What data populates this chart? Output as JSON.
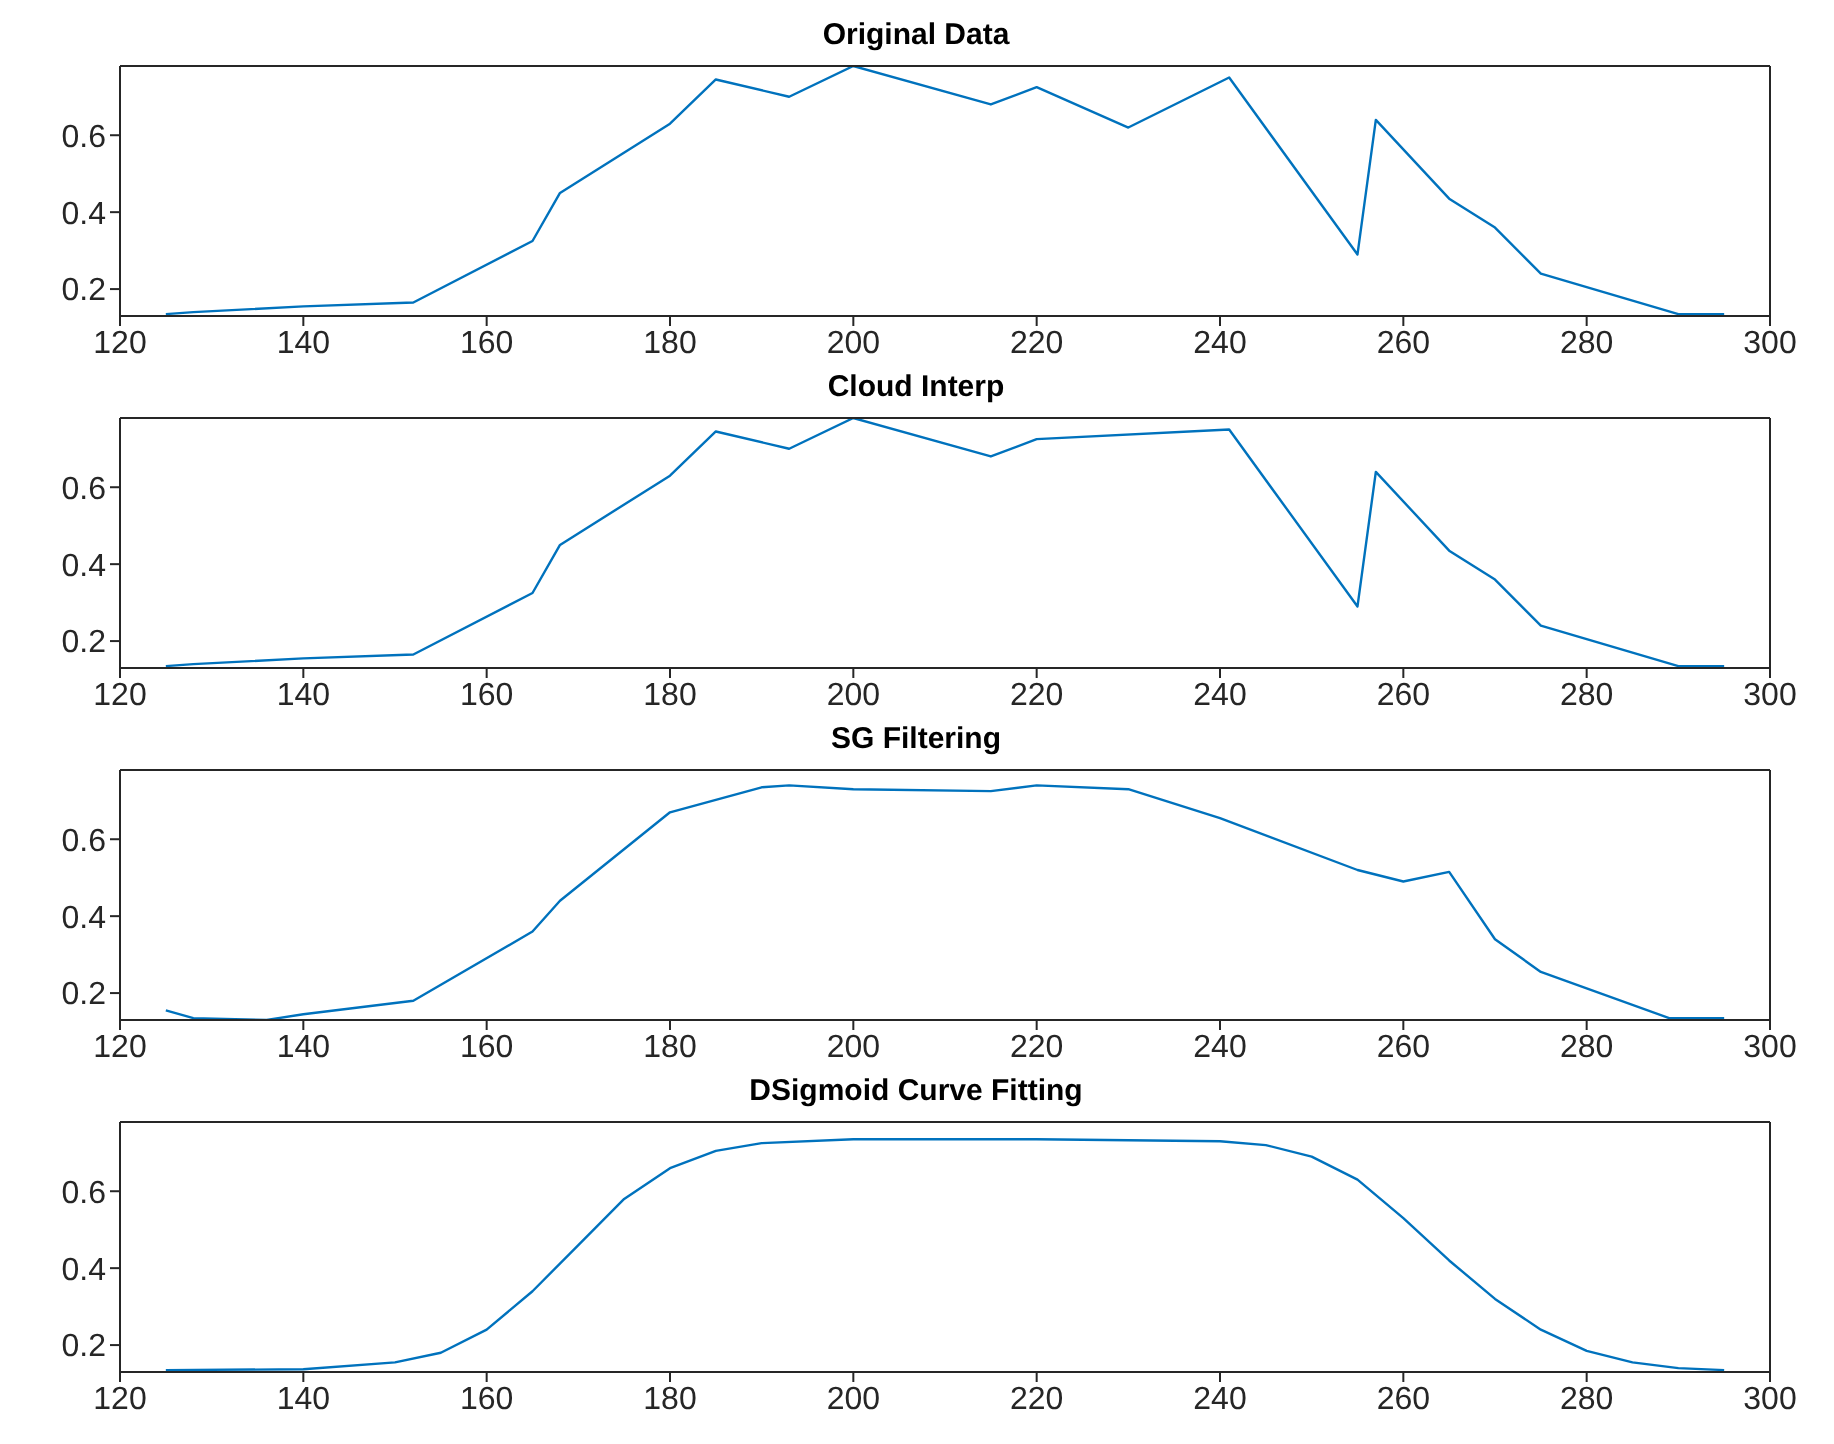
{
  "chart_data": [
    {
      "type": "line",
      "title": "Original Data",
      "color": "#0072bd",
      "xlim": [
        120,
        300
      ],
      "xticks": [
        120,
        140,
        160,
        180,
        200,
        220,
        240,
        260,
        280,
        300
      ],
      "ylim": [
        0.13,
        0.78
      ],
      "yticks": [
        0.2,
        0.4,
        0.6
      ],
      "x": [
        125,
        128,
        140,
        152,
        165,
        168,
        180,
        185,
        193,
        200,
        215,
        220,
        230,
        241,
        255,
        257,
        265,
        270,
        275,
        290,
        295
      ],
      "values": [
        0.135,
        0.14,
        0.155,
        0.165,
        0.325,
        0.45,
        0.63,
        0.745,
        0.7,
        0.78,
        0.68,
        0.725,
        0.62,
        0.75,
        0.29,
        0.64,
        0.435,
        0.36,
        0.24,
        0.135,
        0.135
      ]
    },
    {
      "type": "line",
      "title": "Cloud Interp",
      "color": "#0072bd",
      "xlim": [
        120,
        300
      ],
      "xticks": [
        120,
        140,
        160,
        180,
        200,
        220,
        240,
        260,
        280,
        300
      ],
      "ylim": [
        0.13,
        0.78
      ],
      "yticks": [
        0.2,
        0.4,
        0.6
      ],
      "x": [
        125,
        128,
        140,
        152,
        165,
        168,
        180,
        185,
        193,
        200,
        215,
        220,
        241,
        255,
        257,
        265,
        270,
        275,
        290,
        295
      ],
      "values": [
        0.135,
        0.14,
        0.155,
        0.165,
        0.325,
        0.45,
        0.63,
        0.745,
        0.7,
        0.78,
        0.68,
        0.725,
        0.75,
        0.29,
        0.64,
        0.435,
        0.36,
        0.24,
        0.135,
        0.135
      ]
    },
    {
      "type": "line",
      "title": "SG Filtering",
      "color": "#0072bd",
      "xlim": [
        120,
        300
      ],
      "xticks": [
        120,
        140,
        160,
        180,
        200,
        220,
        240,
        260,
        280,
        300
      ],
      "ylim": [
        0.13,
        0.78
      ],
      "yticks": [
        0.2,
        0.4,
        0.6
      ],
      "x": [
        125,
        128,
        136,
        140,
        152,
        165,
        168,
        180,
        190,
        193,
        200,
        215,
        220,
        230,
        240,
        255,
        260,
        265,
        270,
        275,
        289,
        295
      ],
      "values": [
        0.155,
        0.135,
        0.13,
        0.145,
        0.18,
        0.36,
        0.44,
        0.67,
        0.735,
        0.74,
        0.73,
        0.725,
        0.74,
        0.73,
        0.655,
        0.52,
        0.49,
        0.515,
        0.34,
        0.255,
        0.135,
        0.135
      ]
    },
    {
      "type": "line",
      "title": "DSigmoid Curve Fitting",
      "color": "#0072bd",
      "xlim": [
        120,
        300
      ],
      "xticks": [
        120,
        140,
        160,
        180,
        200,
        220,
        240,
        260,
        280,
        300
      ],
      "ylim": [
        0.13,
        0.78
      ],
      "yticks": [
        0.2,
        0.4,
        0.6
      ],
      "x": [
        125,
        140,
        150,
        155,
        160,
        165,
        170,
        175,
        180,
        185,
        190,
        200,
        220,
        240,
        245,
        250,
        255,
        260,
        265,
        270,
        275,
        280,
        285,
        290,
        295
      ],
      "values": [
        0.135,
        0.137,
        0.155,
        0.18,
        0.24,
        0.34,
        0.46,
        0.58,
        0.66,
        0.705,
        0.725,
        0.735,
        0.735,
        0.73,
        0.72,
        0.69,
        0.63,
        0.53,
        0.42,
        0.32,
        0.24,
        0.185,
        0.155,
        0.14,
        0.135
      ]
    }
  ]
}
